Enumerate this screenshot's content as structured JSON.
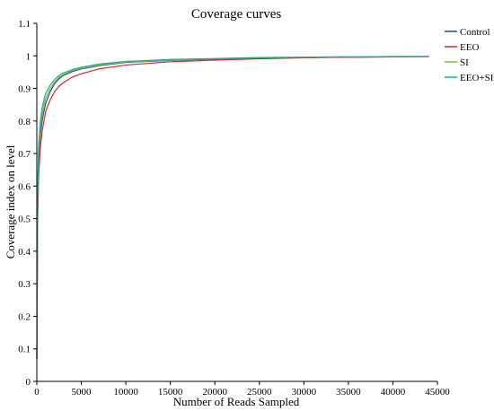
{
  "chart_data": {
    "type": "line",
    "title": "Coverage curves",
    "xlabel": "Number of Reads Sampled",
    "ylabel": "Coverage index on level",
    "xlim": [
      0,
      45000
    ],
    "ylim": [
      0,
      1.1
    ],
    "xticks": [
      "0",
      "5000",
      "10000",
      "15000",
      "20000",
      "25000",
      "30000",
      "35000",
      "40000",
      "45000"
    ],
    "yticks": [
      "0",
      "0.1",
      "0.2",
      "0.3",
      "0.4",
      "0.5",
      "0.6",
      "0.7",
      "0.8",
      "0.9",
      "1",
      "1.1"
    ],
    "grid": false,
    "legend_position": "top-right",
    "series": [
      {
        "name": "Control",
        "color": "#2b4a8b",
        "x": [
          0,
          100,
          200,
          400,
          600,
          800,
          1000,
          1500,
          2000,
          2500,
          3000,
          4000,
          5000,
          7000,
          10000,
          15000,
          20000,
          25000,
          30000,
          35000,
          40000,
          44000
        ],
        "y": [
          0.07,
          0.55,
          0.68,
          0.76,
          0.8,
          0.83,
          0.855,
          0.89,
          0.915,
          0.93,
          0.94,
          0.952,
          0.96,
          0.97,
          0.98,
          0.986,
          0.99,
          0.993,
          0.995,
          0.996,
          0.997,
          0.998
        ]
      },
      {
        "name": "EEO",
        "color": "#cc2b2b",
        "x": [
          0,
          100,
          200,
          400,
          600,
          800,
          1000,
          1500,
          2000,
          2500,
          3000,
          4000,
          5000,
          7000,
          10000,
          15000,
          20000,
          25000,
          30000,
          35000,
          40000,
          44000
        ],
        "y": [
          0.07,
          0.5,
          0.63,
          0.72,
          0.77,
          0.8,
          0.83,
          0.865,
          0.89,
          0.907,
          0.918,
          0.935,
          0.945,
          0.96,
          0.972,
          0.982,
          0.987,
          0.991,
          0.994,
          0.996,
          0.997,
          0.998
        ]
      },
      {
        "name": "SI",
        "color": "#7bbf3a",
        "x": [
          0,
          100,
          200,
          400,
          600,
          800,
          1000,
          1500,
          2000,
          2500,
          3000,
          4000,
          5000,
          7000,
          10000,
          15000,
          20000,
          25000,
          30000,
          35000,
          40000,
          44000
        ],
        "y": [
          0.07,
          0.57,
          0.7,
          0.78,
          0.82,
          0.85,
          0.87,
          0.9,
          0.92,
          0.935,
          0.943,
          0.955,
          0.962,
          0.972,
          0.981,
          0.987,
          0.991,
          0.994,
          0.996,
          0.997,
          0.998,
          0.998
        ]
      },
      {
        "name": "EEO+SI",
        "color": "#1fa89a",
        "x": [
          0,
          100,
          200,
          400,
          600,
          800,
          1000,
          1500,
          2000,
          2500,
          3000,
          4000,
          5000,
          7000,
          10000,
          15000,
          20000,
          25000,
          30000,
          35000,
          40000,
          44000
        ],
        "y": [
          0.07,
          0.6,
          0.72,
          0.8,
          0.84,
          0.865,
          0.885,
          0.91,
          0.928,
          0.94,
          0.948,
          0.958,
          0.965,
          0.975,
          0.983,
          0.989,
          0.992,
          0.995,
          0.996,
          0.997,
          0.998,
          0.998
        ]
      }
    ]
  }
}
